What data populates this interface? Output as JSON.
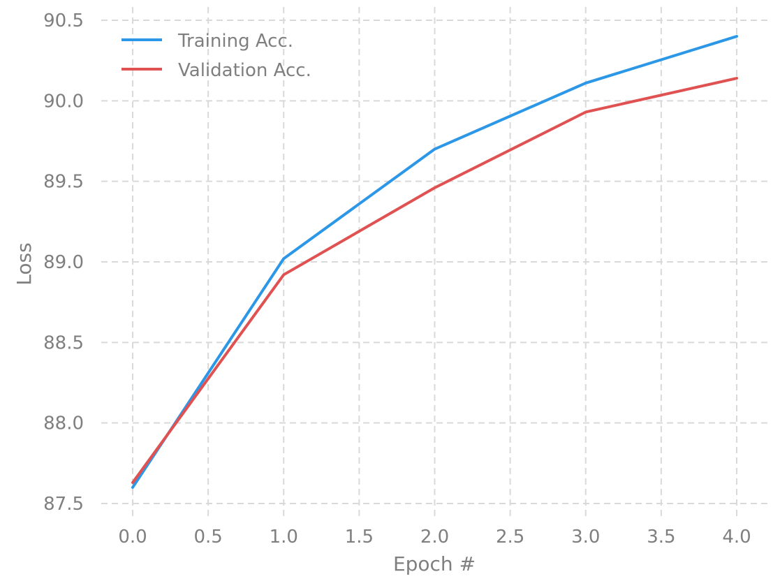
{
  "chart_data": {
    "type": "line",
    "title": "",
    "xlabel": "Epoch #",
    "ylabel": "Loss",
    "xlim": [
      -0.2,
      4.2
    ],
    "ylim": [
      87.45,
      90.55
    ],
    "xticks": [
      0.0,
      0.5,
      1.0,
      1.5,
      2.0,
      2.5,
      3.0,
      3.5,
      4.0
    ],
    "xtick_labels": [
      "0.0",
      "0.5",
      "1.0",
      "1.5",
      "2.0",
      "2.5",
      "3.0",
      "3.5",
      "4.0"
    ],
    "yticks": [
      87.5,
      88.0,
      88.5,
      89.0,
      89.5,
      90.0,
      90.5
    ],
    "ytick_labels": [
      "87.5",
      "88.0",
      "88.5",
      "89.0",
      "89.5",
      "90.0",
      "90.5"
    ],
    "grid": true,
    "legend_position": "top-left",
    "x": [
      0,
      1,
      2,
      3,
      4
    ],
    "series": [
      {
        "name": "Training Acc.",
        "color": "#2b97e6",
        "values": [
          87.6,
          89.02,
          89.7,
          90.11,
          90.4
        ]
      },
      {
        "name": "Validation Acc.",
        "color": "#e05252",
        "values": [
          87.63,
          88.92,
          89.46,
          89.93,
          90.14
        ]
      }
    ]
  }
}
